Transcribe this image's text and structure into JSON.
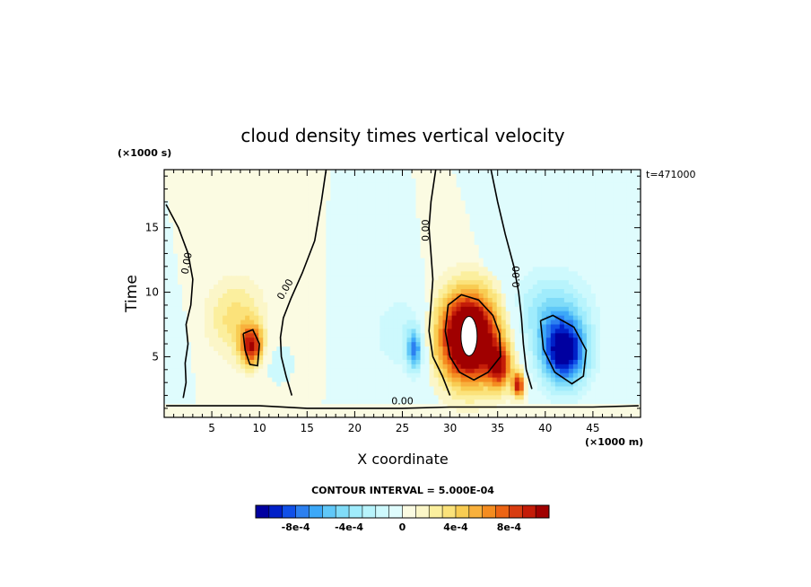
{
  "chart_data": {
    "type": "heatmap",
    "title": "cloud density times vertical velocity",
    "xlabel": "X coordinate",
    "ylabel": "Time",
    "x_units": "(×1000 m)",
    "y_units": "(×1000 s)",
    "annotation": "t=471000",
    "xlim": [
      0,
      50
    ],
    "ylim": [
      0.3,
      19.5
    ],
    "x_ticks": [
      5,
      10,
      15,
      20,
      25,
      30,
      35,
      40,
      45
    ],
    "y_ticks": [
      5,
      10,
      15
    ],
    "contour_labels": [
      "0.00",
      "0.00",
      "0.00",
      "0.00",
      "0.00"
    ],
    "contour_interval_text": "CONTOUR INTERVAL = 5.000E-04",
    "colorbar": {
      "labels": [
        "-8e-4",
        "-4e-4",
        "0",
        "4e-4",
        "8e-4"
      ],
      "label_values": [
        -0.0008,
        -0.0004,
        0,
        0.0004,
        0.0008
      ],
      "levels": [
        -0.0011,
        -0.001,
        -0.0009,
        -0.0008,
        -0.0007,
        -0.0006,
        -0.0005,
        -0.0004,
        -0.0003,
        -0.0002,
        -0.0001,
        0,
        0.0001,
        0.0002,
        0.0003,
        0.0004,
        0.0005,
        0.0006,
        0.0007,
        0.0008,
        0.0009,
        0.001,
        0.0011
      ],
      "colors": [
        "#0000a0",
        "#0020c8",
        "#1050e8",
        "#2c80f0",
        "#3ca8f8",
        "#60c8f8",
        "#80dcf8",
        "#a0ecfc",
        "#b8f4fc",
        "#cdf9fd",
        "#dffcfd",
        "#fbfbe2",
        "#fbf6c8",
        "#fbef9e",
        "#fbe27a",
        "#f8cc52",
        "#f8b03c",
        "#f48c20",
        "#ec6414",
        "#d83c10",
        "#c41c08",
        "#a00000"
      ]
    },
    "features": [
      {
        "kind": "positive",
        "x": 32.0,
        "y": 6.5,
        "amplitude": 0.0016,
        "sx": 3.2,
        "sy": 3.5
      },
      {
        "kind": "positive",
        "x": 35.2,
        "y": 4.2,
        "amplitude": 0.0008,
        "sx": 1.2,
        "sy": 1.7
      },
      {
        "kind": "positive",
        "x": 37.2,
        "y": 2.8,
        "amplitude": 0.001,
        "sx": 0.6,
        "sy": 1.0
      },
      {
        "kind": "positive",
        "x": 9.2,
        "y": 5.8,
        "amplitude": 0.0009,
        "sx": 1.2,
        "sy": 1.6
      },
      {
        "kind": "positive",
        "x": 7.5,
        "y": 8.0,
        "amplitude": 0.00035,
        "sx": 3.0,
        "sy": 3.0
      },
      {
        "kind": "negative",
        "x": 42.0,
        "y": 5.3,
        "amplitude": -0.0011,
        "sx": 2.4,
        "sy": 2.6
      },
      {
        "kind": "negative",
        "x": 40.5,
        "y": 8.5,
        "amplitude": -0.0004,
        "sx": 4.0,
        "sy": 3.0
      },
      {
        "kind": "negative",
        "x": 26.3,
        "y": 5.5,
        "amplitude": -0.0007,
        "sx": 0.8,
        "sy": 1.6
      },
      {
        "kind": "negative",
        "x": 25.0,
        "y": 6.8,
        "amplitude": -0.0002,
        "sx": 3.0,
        "sy": 3.0
      },
      {
        "kind": "negative",
        "x": 12.0,
        "y": 4.5,
        "amplitude": -0.0002,
        "sx": 2.0,
        "sy": 2.0
      }
    ]
  }
}
